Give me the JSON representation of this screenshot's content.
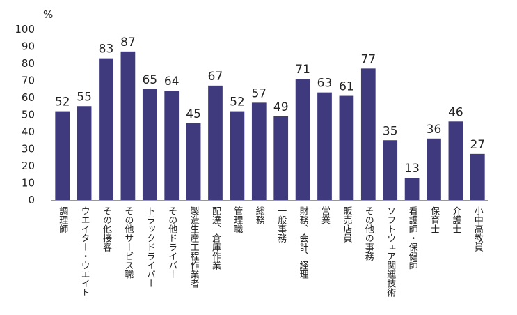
{
  "chart_data": {
    "type": "bar",
    "unit_label": "%",
    "ylim": [
      0,
      100
    ],
    "yticks": [
      0,
      10,
      20,
      30,
      40,
      50,
      60,
      70,
      80,
      90,
      100
    ],
    "grid": false,
    "legend": "none",
    "bar_color": "#3f3a7e",
    "categories": [
      "調理師",
      "ウエイター・ウエイト",
      "その他接客",
      "その他サービス職",
      "トラックドライバー",
      "その他ドライバー",
      "製造生産工程作業者",
      "配達、倉庫作業",
      "管理職",
      "総務",
      "一般事務",
      "財務、会計、経理",
      "営業",
      "販売店員",
      "その他の事務",
      "ソフトウェア関連技術",
      "看護師・保健師",
      "保育士",
      "介護士",
      "小中高教員"
    ],
    "values": [
      52,
      55,
      83,
      87,
      65,
      64,
      45,
      67,
      52,
      57,
      49,
      71,
      63,
      61,
      77,
      35,
      13,
      36,
      46,
      27
    ]
  }
}
